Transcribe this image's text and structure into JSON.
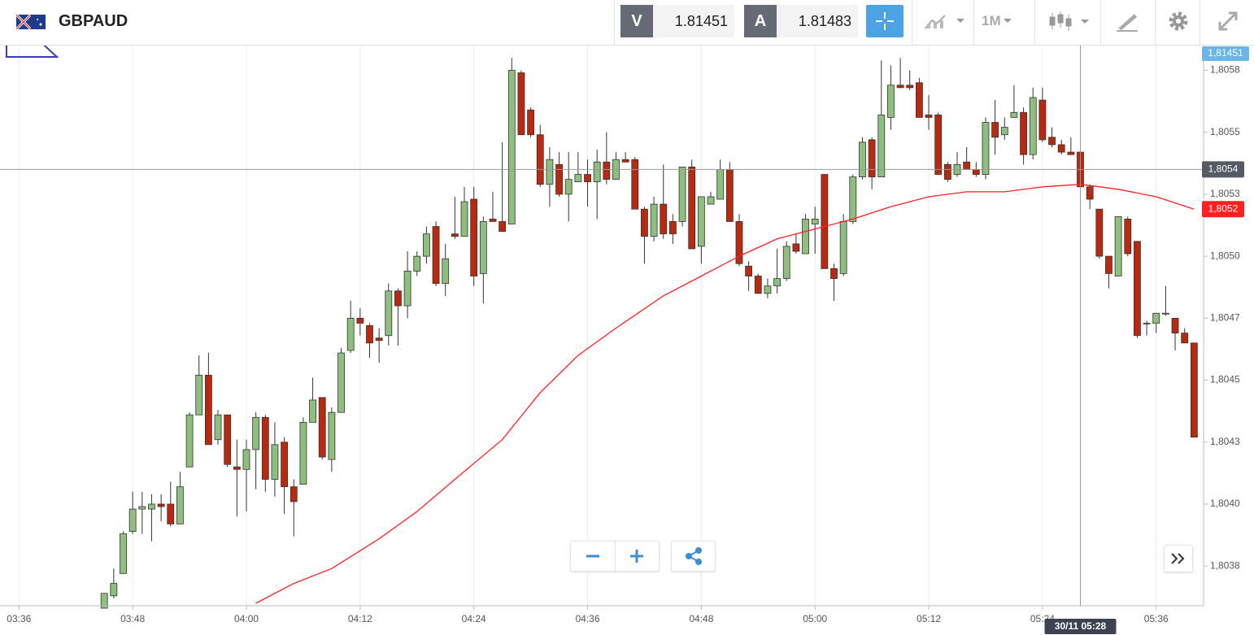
{
  "header": {
    "symbol": "GBPAUD",
    "bid_letter": "V",
    "bid": "1.81451",
    "ask_letter": "A",
    "ask": "1.81483",
    "timeframe": "1M"
  },
  "chart_data": {
    "type": "candlestick",
    "x": [
      "03:45",
      "03:46",
      "03:47",
      "03:48",
      "03:49",
      "03:50",
      "03:51",
      "03:52",
      "03:53",
      "03:54",
      "03:55",
      "03:56",
      "03:57",
      "03:58",
      "03:59",
      "04:00",
      "04:01",
      "04:02",
      "04:03",
      "04:04",
      "04:05",
      "04:06",
      "04:07",
      "04:08",
      "04:09",
      "04:10",
      "04:11",
      "04:12",
      "04:13",
      "04:14",
      "04:15",
      "04:16",
      "04:17",
      "04:18",
      "04:19",
      "04:20",
      "04:21",
      "04:22",
      "04:23",
      "04:24",
      "04:25",
      "04:26",
      "04:27",
      "04:28",
      "04:29",
      "04:30",
      "04:31",
      "04:32",
      "04:33",
      "04:34",
      "04:35",
      "04:36",
      "04:37",
      "04:38",
      "04:39",
      "04:40",
      "04:41",
      "04:42",
      "04:43",
      "04:44",
      "04:45",
      "04:46",
      "04:47",
      "04:48",
      "04:49",
      "04:50",
      "04:51",
      "04:52",
      "04:53",
      "04:54",
      "04:55",
      "04:56",
      "04:57",
      "04:58",
      "04:59",
      "05:00",
      "05:01",
      "05:02",
      "05:03",
      "05:04",
      "05:05",
      "05:06",
      "05:07",
      "05:08",
      "05:09",
      "05:10",
      "05:11",
      "05:12",
      "05:13",
      "05:14",
      "05:15",
      "05:16",
      "05:17",
      "05:18",
      "05:19",
      "05:20",
      "05:21",
      "05:22",
      "05:23",
      "05:24",
      "05:25",
      "05:26",
      "05:27",
      "05:28",
      "05:29",
      "05:30",
      "05:31",
      "05:32",
      "05:33",
      "05:34",
      "05:35",
      "05:36",
      "05:37",
      "05:38",
      "05:39",
      "05:40"
    ],
    "open": [
      1.80358,
      1.80363,
      1.80372,
      1.80389,
      1.80398,
      1.80398,
      1.804,
      1.804,
      1.80392,
      1.80415,
      1.80436,
      1.80452,
      1.80426,
      1.80436,
      1.80415,
      1.80414,
      1.80422,
      1.80435,
      1.8041,
      1.80425,
      1.80407,
      1.80408,
      1.80433,
      1.80443,
      1.80418,
      1.80437,
      1.80462,
      1.80475,
      1.80472,
      1.80467,
      1.80468,
      1.80486,
      1.8048,
      1.80494,
      1.805,
      1.80512,
      1.80489,
      1.80509,
      1.80508,
      1.80523,
      1.80493,
      1.80515,
      1.80514,
      1.80513,
      1.80574,
      1.80559,
      1.80549,
      1.80529,
      1.80537,
      1.80525,
      1.8053,
      1.80533,
      1.8053,
      1.80538,
      1.80531,
      1.80539,
      1.80539,
      1.80519,
      1.80508,
      1.80521,
      1.80514,
      1.80514,
      1.80536,
      1.80504,
      1.80521,
      1.80523,
      1.80535,
      1.80514,
      1.80496,
      1.80492,
      1.80485,
      1.80488,
      1.80491,
      1.80505,
      1.80501,
      1.80513,
      1.80533,
      1.80495,
      1.80493,
      1.80514,
      1.80532,
      1.80547,
      1.80532,
      1.80556,
      1.80569,
      1.80569,
      1.8057,
      1.80557,
      1.80557,
      1.80537,
      1.80533,
      1.80538,
      1.80535,
      1.80533,
      1.80554,
      1.80549,
      1.80556,
      1.80558,
      1.80541,
      1.80563,
      1.80548,
      1.80545,
      1.80542,
      1.80542,
      1.80528,
      1.80519,
      1.805,
      1.80492,
      1.80515,
      1.80506,
      1.80473,
      1.80473,
      1.80477,
      1.80475,
      1.80469,
      1.80465
    ],
    "high": [
      1.80364,
      1.80374,
      1.80389,
      1.80405,
      1.80405,
      1.80404,
      1.80404,
      1.80409,
      1.80413,
      1.80437,
      1.8046,
      1.80461,
      1.80438,
      1.80436,
      1.80426,
      1.80426,
      1.80437,
      1.80436,
      1.80433,
      1.80427,
      1.8041,
      1.80435,
      1.80451,
      1.80443,
      1.80439,
      1.80463,
      1.80482,
      1.80479,
      1.80473,
      1.80471,
      1.80489,
      1.80487,
      1.80502,
      1.80502,
      1.80512,
      1.80514,
      1.80505,
      1.80524,
      1.80528,
      1.80528,
      1.80516,
      1.80526,
      1.80546,
      1.8058,
      1.80575,
      1.8056,
      1.80553,
      1.80544,
      1.80542,
      1.80542,
      1.80542,
      1.80539,
      1.80543,
      1.8055,
      1.80542,
      1.80542,
      1.8054,
      1.8052,
      1.80524,
      1.80537,
      1.80517,
      1.80536,
      1.80539,
      1.80524,
      1.80526,
      1.80539,
      1.80538,
      1.80517,
      1.80498,
      1.80493,
      1.80491,
      1.80503,
      1.80506,
      1.80509,
      1.80517,
      1.8052,
      1.80533,
      1.80497,
      1.80517,
      1.80533,
      1.80548,
      1.80548,
      1.80579,
      1.80577,
      1.8058,
      1.80575,
      1.80572,
      1.80565,
      1.80558,
      1.80538,
      1.80542,
      1.80544,
      1.80538,
      1.80556,
      1.80563,
      1.80556,
      1.80569,
      1.8056,
      1.80568,
      1.80568,
      1.80552,
      1.80547,
      1.80548,
      1.8056,
      1.80529,
      1.80519,
      1.805,
      1.80516,
      1.80516,
      1.80506,
      1.80474,
      1.80477,
      1.80488,
      1.80475,
      1.80471,
      1.80465
    ],
    "low": [
      1.80358,
      1.80362,
      1.80372,
      1.80388,
      1.80388,
      1.80385,
      1.80393,
      1.80391,
      1.80392,
      1.80415,
      1.80436,
      1.80424,
      1.80424,
      1.80415,
      1.80395,
      1.80397,
      1.80406,
      1.80405,
      1.80403,
      1.80396,
      1.80387,
      1.80408,
      1.80433,
      1.80418,
      1.80413,
      1.80437,
      1.80461,
      1.80468,
      1.80459,
      1.80457,
      1.80464,
      1.80464,
      1.80475,
      1.80492,
      1.80497,
      1.80488,
      1.80484,
      1.80507,
      1.80508,
      1.80488,
      1.80481,
      1.80514,
      1.8051,
      1.80513,
      1.80549,
      1.80548,
      1.80528,
      1.8052,
      1.80524,
      1.80514,
      1.8053,
      1.8052,
      1.80515,
      1.80529,
      1.80531,
      1.80538,
      1.80519,
      1.80497,
      1.80506,
      1.80507,
      1.80505,
      1.80512,
      1.80503,
      1.80497,
      1.80521,
      1.80523,
      1.80514,
      1.80496,
      1.80486,
      1.80485,
      1.80483,
      1.80485,
      1.8049,
      1.80501,
      1.80501,
      1.80501,
      1.80495,
      1.80482,
      1.80492,
      1.80513,
      1.80531,
      1.80527,
      1.80532,
      1.80551,
      1.80568,
      1.80567,
      1.80556,
      1.80551,
      1.80533,
      1.8053,
      1.80532,
      1.80535,
      1.80532,
      1.80531,
      1.80541,
      1.80547,
      1.80556,
      1.80537,
      1.80539,
      1.80546,
      1.80544,
      1.80541,
      1.80541,
      1.80528,
      1.80519,
      1.80499,
      1.80487,
      1.80492,
      1.805,
      1.80467,
      1.80468,
      1.80469,
      1.80476,
      1.80462,
      1.80465,
      1.80427
    ],
    "close": [
      1.80364,
      1.80368,
      1.80388,
      1.80398,
      1.80399,
      1.804,
      1.80399,
      1.80392,
      1.80407,
      1.80436,
      1.80452,
      1.80424,
      1.80436,
      1.80416,
      1.80414,
      1.80422,
      1.80435,
      1.8041,
      1.80424,
      1.80407,
      1.80401,
      1.80433,
      1.80442,
      1.80419,
      1.80437,
      1.80461,
      1.80475,
      1.80473,
      1.80465,
      1.80466,
      1.80486,
      1.8048,
      1.80494,
      1.805,
      1.80509,
      1.80489,
      1.80499,
      1.80508,
      1.80522,
      1.80492,
      1.80514,
      1.80514,
      1.8051,
      1.80575,
      1.80549,
      1.80549,
      1.80529,
      1.80539,
      1.80525,
      1.80531,
      1.80533,
      1.8053,
      1.80538,
      1.80531,
      1.80539,
      1.80538,
      1.80519,
      1.80508,
      1.80521,
      1.80509,
      1.80509,
      1.80536,
      1.80503,
      1.80524,
      1.80524,
      1.80535,
      1.80514,
      1.80497,
      1.80492,
      1.80485,
      1.80488,
      1.80491,
      1.80504,
      1.80502,
      1.80515,
      1.80515,
      1.80495,
      1.80491,
      1.80514,
      1.80532,
      1.80546,
      1.80532,
      1.80557,
      1.80569,
      1.80568,
      1.80568,
      1.80556,
      1.80556,
      1.80533,
      1.80531,
      1.80537,
      1.80535,
      1.80533,
      1.80554,
      1.80548,
      1.80552,
      1.80558,
      1.80541,
      1.80564,
      1.80547,
      1.80545,
      1.80542,
      1.80541,
      1.80528,
      1.80523,
      1.805,
      1.80493,
      1.80516,
      1.80501,
      1.80468,
      1.80473,
      1.80477,
      1.80477,
      1.80469,
      1.80465,
      1.80427
    ],
    "up_color": "#8fbf7f",
    "down_color": "#b8290f",
    "border_color": "#333333",
    "indicator": {
      "color": "#ff2020",
      "x": [
        "04:01",
        "04:05",
        "04:09",
        "04:14",
        "04:18",
        "04:22",
        "04:27",
        "04:31",
        "04:35",
        "04:39",
        "04:44",
        "04:48",
        "04:52",
        "04:56",
        "05:00",
        "05:04",
        "05:08",
        "05:12",
        "05:16",
        "05:20",
        "05:24",
        "05:28",
        "05:32",
        "05:36",
        "05:40"
      ],
      "values": [
        1.8036,
        1.80368,
        1.80374,
        1.80386,
        1.80397,
        1.8041,
        1.80426,
        1.80445,
        1.8046,
        1.80471,
        1.80484,
        1.80492,
        1.805,
        1.80507,
        1.80511,
        1.80515,
        1.8052,
        1.80524,
        1.80526,
        1.80526,
        1.80528,
        1.80529,
        1.80527,
        1.80524,
        1.80519
      ]
    },
    "xlim": [
      "03:34",
      "05:41"
    ],
    "xticks": [
      "03:36",
      "03:48",
      "04:00",
      "04:12",
      "04:24",
      "04:36",
      "04:48",
      "05:00",
      "05:12",
      "05:24",
      "05:36"
    ],
    "ylim": [
      1.80359,
      1.80585
    ],
    "yticks": [
      {
        "value": 1.80575,
        "label": "1,8058"
      },
      {
        "value": 1.8055,
        "label": "1,8055"
      },
      {
        "value": 1.80525,
        "label": "1,8053"
      },
      {
        "value": 1.805,
        "label": "1,8050"
      },
      {
        "value": 1.80475,
        "label": "1,8047"
      },
      {
        "value": 1.8045,
        "label": "1,8045"
      },
      {
        "value": 1.80425,
        "label": "1,8043"
      },
      {
        "value": 1.804,
        "label": "1,8040"
      },
      {
        "value": 1.80375,
        "label": "1,8038"
      }
    ],
    "grid": true,
    "crosshair": {
      "x": "05:28",
      "x_label": "30/11 05:28",
      "y": 1.80535,
      "y_label": "1,8054"
    },
    "last_indicator": {
      "value": 1.80519,
      "label": "1,8052"
    },
    "bid_label": "1,81451"
  }
}
